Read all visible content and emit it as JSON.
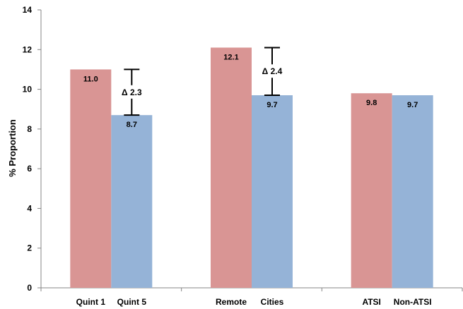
{
  "chart_data": {
    "type": "bar",
    "ylabel": "% Proportion",
    "ylim": [
      0,
      14
    ],
    "yticks": [
      0,
      2,
      4,
      6,
      8,
      10,
      12,
      14
    ],
    "grid": false,
    "legend": "none",
    "groups": [
      {
        "bars": [
          {
            "category": "Quint 1",
            "value": 11.0,
            "label": "11.0",
            "color": "#d99594"
          },
          {
            "category": "Quint 5",
            "value": 8.7,
            "label": "8.7",
            "color": "#95b3d7"
          }
        ],
        "difference": {
          "label": "Δ 2.3",
          "from": 11.0,
          "to": 8.7
        }
      },
      {
        "bars": [
          {
            "category": "Remote",
            "value": 12.1,
            "label": "12.1",
            "color": "#d99594"
          },
          {
            "category": "Cities",
            "value": 9.7,
            "label": "9.7",
            "color": "#95b3d7"
          }
        ],
        "difference": {
          "label": "Δ 2.4",
          "from": 12.1,
          "to": 9.7
        }
      },
      {
        "bars": [
          {
            "category": "ATSI",
            "value": 9.8,
            "label": "9.8",
            "color": "#d99594"
          },
          {
            "category": "Non-ATSI",
            "value": 9.7,
            "label": "9.7",
            "color": "#95b3d7"
          }
        ],
        "difference": null
      }
    ]
  }
}
